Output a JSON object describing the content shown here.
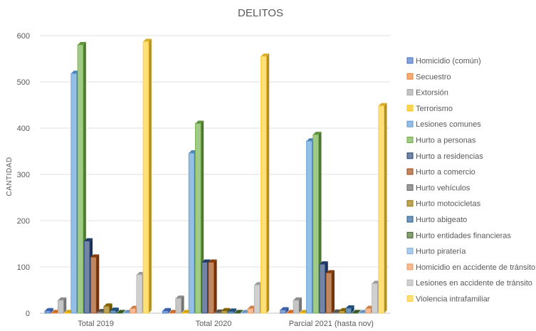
{
  "chart_data": {
    "type": "bar",
    "title": "DELITOS",
    "xlabel": "",
    "ylabel": "CANTIDAD",
    "ylim": [
      0,
      600
    ],
    "yticks": [
      0,
      100,
      200,
      300,
      400,
      500,
      600
    ],
    "grid": true,
    "legend_position": "right",
    "categories": [
      "Total 2019",
      "Total 2020",
      "Parcial 2021 (hasta nov)"
    ],
    "series": [
      {
        "name": "Homicidio (común)",
        "color": "#4472c4",
        "values": [
          5,
          5,
          7
        ]
      },
      {
        "name": "Secuestro",
        "color": "#ed7d31",
        "values": [
          1,
          1,
          1
        ]
      },
      {
        "name": "Extorsión",
        "color": "#a5a5a5",
        "values": [
          28,
          32,
          28
        ]
      },
      {
        "name": "Terrorismo",
        "color": "#ffc000",
        "values": [
          1,
          1,
          1
        ]
      },
      {
        "name": "Lesiones comunes",
        "color": "#5b9bd5",
        "values": [
          518,
          346,
          372
        ]
      },
      {
        "name": "Hurto a personas",
        "color": "#70ad47",
        "values": [
          580,
          410,
          386
        ]
      },
      {
        "name": "Hurto a residencias",
        "color": "#264478",
        "values": [
          156,
          110,
          106
        ]
      },
      {
        "name": "Hurto a comercio",
        "color": "#9e480e",
        "values": [
          121,
          110,
          87
        ]
      },
      {
        "name": "Hurto vehículos",
        "color": "#636363",
        "values": [
          3,
          2,
          2
        ]
      },
      {
        "name": "Hurto motocicletas",
        "color": "#997300",
        "values": [
          15,
          5,
          5
        ]
      },
      {
        "name": "Hurto abigeato",
        "color": "#255e91",
        "values": [
          6,
          4,
          11
        ]
      },
      {
        "name": "Hurto entidades financieras",
        "color": "#43682b",
        "values": [
          1,
          1,
          1
        ]
      },
      {
        "name": "Hurto piratería",
        "color": "#7cafdd",
        "values": [
          1,
          1,
          1
        ]
      },
      {
        "name": "Homicidio en accidente de tránsito",
        "color": "#f1975a",
        "values": [
          10,
          10,
          10
        ]
      },
      {
        "name": "Lesiones en accidente de tránsito",
        "color": "#b7b7b7",
        "values": [
          83,
          61,
          64
        ]
      },
      {
        "name": "Violencia intrafamiliar",
        "color": "#ffcd33",
        "values": [
          587,
          555,
          448
        ]
      }
    ]
  }
}
